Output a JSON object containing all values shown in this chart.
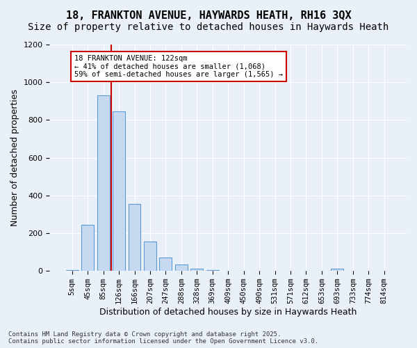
{
  "title": "18, FRANKTON AVENUE, HAYWARDS HEATH, RH16 3QX",
  "subtitle": "Size of property relative to detached houses in Haywards Heath",
  "xlabel": "Distribution of detached houses by size in Haywards Heath",
  "ylabel": "Number of detached properties",
  "categories": [
    "5sqm",
    "45sqm",
    "85sqm",
    "126sqm",
    "166sqm",
    "207sqm",
    "247sqm",
    "288sqm",
    "328sqm",
    "369sqm",
    "409sqm",
    "450sqm",
    "490sqm",
    "531sqm",
    "571sqm",
    "612sqm",
    "653sqm",
    "693sqm",
    "733sqm",
    "774sqm",
    "814sqm"
  ],
  "values": [
    5,
    245,
    930,
    845,
    355,
    155,
    70,
    35,
    13,
    5,
    2,
    1,
    0,
    0,
    0,
    0,
    0,
    13,
    0,
    0,
    0
  ],
  "bar_color": "#c6d9f0",
  "bar_edge_color": "#5b9bd5",
  "vline_x": 2.5,
  "vline_color": "#cc0000",
  "annotation_text": "18 FRANKTON AVENUE: 122sqm\n← 41% of detached houses are smaller (1,068)\n59% of semi-detached houses are larger (1,565) →",
  "annotation_box_color": "#ffffff",
  "annotation_box_edge_color": "#cc0000",
  "ylim": [
    0,
    1200
  ],
  "yticks": [
    0,
    200,
    400,
    600,
    800,
    1000,
    1200
  ],
  "background_color": "#eaf0f8",
  "footer_text": "Contains HM Land Registry data © Crown copyright and database right 2025.\nContains public sector information licensed under the Open Government Licence v3.0.",
  "title_fontsize": 11,
  "subtitle_fontsize": 10,
  "ylabel_fontsize": 9,
  "xlabel_fontsize": 9,
  "tick_fontsize": 7.5
}
